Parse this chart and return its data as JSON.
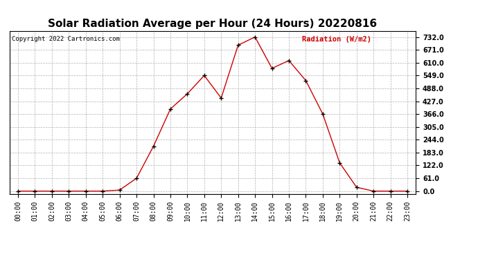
{
  "title": "Solar Radiation Average per Hour (24 Hours) 20220816",
  "copyright_text": "Copyright 2022 Cartronics.com",
  "ylabel": "Radiation (W/m2)",
  "hours": [
    "00:00",
    "01:00",
    "02:00",
    "03:00",
    "04:00",
    "05:00",
    "06:00",
    "07:00",
    "08:00",
    "09:00",
    "10:00",
    "11:00",
    "12:00",
    "13:00",
    "14:00",
    "15:00",
    "16:00",
    "17:00",
    "18:00",
    "19:00",
    "20:00",
    "21:00",
    "22:00",
    "23:00"
  ],
  "values": [
    0.0,
    0.0,
    0.0,
    0.0,
    0.0,
    0.0,
    5.0,
    61.0,
    213.0,
    390.0,
    462.0,
    549.0,
    442.0,
    693.0,
    732.0,
    583.0,
    620.0,
    525.0,
    366.0,
    134.0,
    18.0,
    0.0,
    0.0,
    0.0
  ],
  "line_color": "#cc0000",
  "marker_color": "#000000",
  "grid_color": "#b0b0b0",
  "bg_color": "#ffffff",
  "title_fontsize": 11,
  "tick_fontsize": 7,
  "yticks": [
    0.0,
    61.0,
    122.0,
    183.0,
    244.0,
    305.0,
    366.0,
    427.0,
    488.0,
    549.0,
    610.0,
    671.0,
    732.0
  ],
  "ylim": [
    -15,
    760
  ],
  "copyright_color": "#000000",
  "ylabel_color": "#cc0000"
}
